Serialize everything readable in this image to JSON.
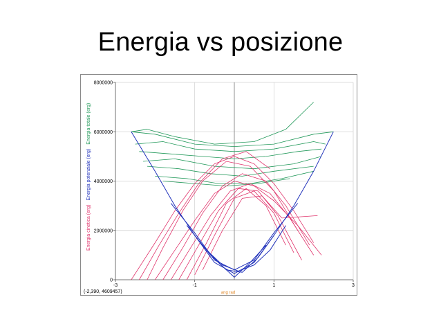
{
  "slide": {
    "title": "Energia vs posizione"
  },
  "coordinate_readout": "(-2,390, 4609457)",
  "chart_data": {
    "type": "line",
    "xlabel": "ang rad",
    "ylabels": [
      {
        "text": "Energia cinetica (erg)",
        "color": "#e0336b"
      },
      {
        "text": "Energia potenziale (erg)",
        "color": "#2233bb"
      },
      {
        "text": "Energia totale (erg)",
        "color": "#22995a"
      }
    ],
    "xlim": [
      -3,
      3
    ],
    "ylim": [
      0,
      8000000
    ],
    "x_ticks": [
      -3,
      -1,
      1,
      3
    ],
    "x_tick_labels": [
      "-3",
      "-1",
      "1",
      "3"
    ],
    "y_ticks": [
      0,
      2000000,
      4000000,
      6000000,
      8000000
    ],
    "y_tick_labels": [
      "0",
      "2000000",
      "4000000",
      "6000000",
      "8000000"
    ],
    "grid": true,
    "colors": {
      "kinetic": "#e0336b",
      "potential": "#2233bb",
      "total": "#22995a"
    },
    "series": [
      {
        "group": "total",
        "x": [
          -2.6,
          -2.0,
          -1.0,
          0.0,
          1.0,
          2.0,
          2.5
        ],
        "y": [
          6000000,
          5900000,
          5500000,
          5400000,
          5500000,
          5900000,
          6000000
        ]
      },
      {
        "group": "total",
        "x": [
          -2.6,
          -2.2,
          -1.5,
          -0.5,
          0.5,
          1.3,
          2.0
        ],
        "y": [
          6000000,
          6100000,
          5800000,
          5500000,
          5600000,
          6100000,
          7200000
        ]
      },
      {
        "group": "total",
        "x": [
          -2.5,
          -1.8,
          -1.0,
          0.0,
          1.0,
          2.0,
          2.3
        ],
        "y": [
          5500000,
          5600000,
          5300000,
          5200000,
          5300000,
          5600000,
          5500000
        ]
      },
      {
        "group": "total",
        "x": [
          -2.4,
          -1.6,
          -0.8,
          0.0,
          0.8,
          1.6,
          2.2
        ],
        "y": [
          5200000,
          5100000,
          5000000,
          4900000,
          5000000,
          5200000,
          5300000
        ]
      },
      {
        "group": "total",
        "x": [
          -2.3,
          -1.5,
          -0.5,
          0.5,
          1.5,
          2.2
        ],
        "y": [
          4800000,
          4900000,
          4600000,
          4500000,
          4700000,
          5000000
        ]
      },
      {
        "group": "total",
        "x": [
          -2.2,
          -1.4,
          -0.6,
          0.2,
          1.0,
          2.0
        ],
        "y": [
          4600000,
          4500000,
          4300000,
          4200000,
          4400000,
          4600000
        ]
      },
      {
        "group": "total",
        "x": [
          -2.0,
          -1.2,
          -0.4,
          0.4,
          1.2,
          2.0
        ],
        "y": [
          4200000,
          4100000,
          3900000,
          3900000,
          4100000,
          4400000
        ]
      },
      {
        "group": "total",
        "x": [
          -1.8,
          -1.0,
          -0.2,
          0.6,
          1.4
        ],
        "y": [
          4000000,
          3900000,
          3800000,
          3900000,
          4100000
        ]
      },
      {
        "group": "potential",
        "x": [
          -2.6,
          -2.0,
          -1.5,
          -1.0,
          -0.5,
          0.0,
          0.5,
          1.0,
          1.5,
          2.0,
          2.5
        ],
        "y": [
          6000000,
          4400000,
          3000000,
          1800000,
          700000,
          250000,
          700000,
          1800000,
          3000000,
          4400000,
          6000000
        ]
      },
      {
        "group": "potential",
        "x": [
          -1.6,
          -1.0,
          -0.5,
          0.0,
          0.5,
          1.0,
          1.6
        ],
        "y": [
          3100000,
          1900000,
          800000,
          400000,
          800000,
          1900000,
          3100000
        ]
      },
      {
        "group": "potential",
        "x": [
          -1.2,
          -0.7,
          -0.3,
          0.1,
          0.5,
          0.9,
          1.3
        ],
        "y": [
          2200000,
          1200000,
          600000,
          350000,
          600000,
          1200000,
          2200000
        ]
      },
      {
        "group": "potential",
        "x": [
          -1.0,
          -0.6,
          -0.2,
          0.2,
          0.6,
          1.0
        ],
        "y": [
          1800000,
          1000000,
          400000,
          300000,
          900000,
          1800000
        ]
      },
      {
        "group": "potential",
        "x": [
          -0.8,
          -0.4,
          0.0,
          0.4,
          0.8
        ],
        "y": [
          1400000,
          700000,
          100000,
          700000,
          1400000
        ]
      },
      {
        "group": "kinetic",
        "x": [
          -2.6,
          -2.0,
          -1.5,
          -1.0,
          -0.5,
          0.0,
          0.5,
          1.0,
          1.5,
          2.0
        ],
        "y": [
          0,
          1500000,
          2800000,
          3900000,
          4700000,
          5000000,
          4700000,
          3900000,
          2800000,
          1500000
        ]
      },
      {
        "group": "kinetic",
        "x": [
          -2.0,
          -1.5,
          -1.0,
          -0.5,
          0.0,
          0.5,
          1.0,
          1.6,
          2.2
        ],
        "y": [
          0,
          1200000,
          2400000,
          3500000,
          4000000,
          3800000,
          3200000,
          2200000,
          1000000
        ]
      },
      {
        "group": "kinetic",
        "x": [
          -1.6,
          -1.1,
          -0.6,
          -0.1,
          0.4,
          0.9,
          1.4,
          2.0
        ],
        "y": [
          0,
          1300000,
          2600000,
          3600000,
          3900000,
          3500000,
          2500000,
          1000000
        ]
      },
      {
        "group": "kinetic",
        "x": [
          -1.4,
          -0.9,
          -0.4,
          0.1,
          0.6,
          1.1,
          1.7
        ],
        "y": [
          0,
          1400000,
          2800000,
          3700000,
          3600000,
          2600000,
          800000
        ]
      },
      {
        "group": "kinetic",
        "x": [
          -1.2,
          -0.7,
          -0.2,
          0.3,
          0.8,
          1.3
        ],
        "y": [
          0,
          1500000,
          3100000,
          3700000,
          3000000,
          1400000
        ]
      },
      {
        "group": "kinetic",
        "x": [
          -2.2,
          -1.8,
          -1.3,
          -0.8,
          -0.2,
          0.4,
          1.0,
          1.6
        ],
        "y": [
          0,
          1300000,
          2800000,
          4000000,
          4800000,
          4600000,
          3600000,
          2000000
        ]
      },
      {
        "group": "kinetic",
        "x": [
          -1.8,
          -1.3,
          -0.8,
          -0.3,
          0.2,
          0.8,
          1.3,
          1.9
        ],
        "y": [
          0,
          1300000,
          2700000,
          3800000,
          4300000,
          4000000,
          3000000,
          1400000
        ]
      },
      {
        "group": "kinetic",
        "x": [
          -1.0,
          -0.5,
          0.0,
          0.5,
          1.0,
          1.5
        ],
        "y": [
          200000,
          1800000,
          3300000,
          3600000,
          2700000,
          1100000
        ]
      },
      {
        "group": "kinetic",
        "x": [
          -0.8,
          -0.3,
          0.2,
          0.7,
          1.2,
          2.1
        ],
        "y": [
          400000,
          2000000,
          3300000,
          3400000,
          2500000,
          2600000
        ]
      },
      {
        "group": "kinetic",
        "x": [
          -2.4,
          -1.9,
          -1.4,
          -0.9,
          -0.3,
          0.3,
          0.9
        ],
        "y": [
          0,
          1400000,
          2700000,
          3900000,
          4900000,
          5200000,
          4500000
        ]
      }
    ]
  }
}
